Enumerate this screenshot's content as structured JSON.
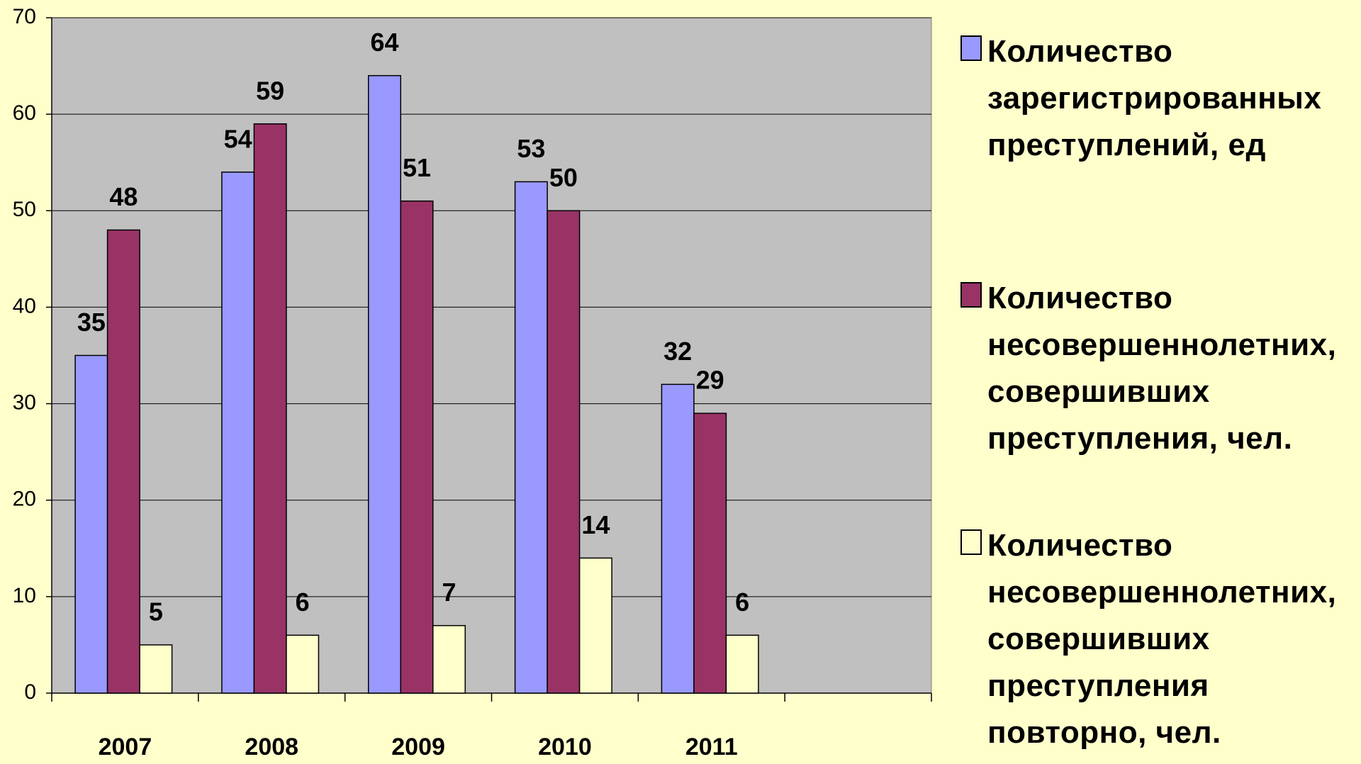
{
  "chart_data": {
    "type": "bar",
    "categories": [
      "2007",
      "2008",
      "2009",
      "2010",
      "2011",
      null
    ],
    "series": [
      {
        "name": "Количество зарегистрированных преступлений, ед",
        "color": "#9999ff",
        "values": [
          35,
          54,
          64,
          53,
          32,
          null
        ]
      },
      {
        "name": "Количество несовершеннолетних, совершивших преступления, чел.",
        "color": "#993366",
        "values": [
          48,
          59,
          51,
          50,
          29,
          null
        ]
      },
      {
        "name": "Количество несовершеннолетних, совершивших преступления повторно, чел.",
        "color": "#ffffcc",
        "values": [
          5,
          6,
          7,
          14,
          6,
          null
        ]
      }
    ],
    "ylim": [
      0,
      70
    ],
    "yticks": [
      0,
      10,
      20,
      30,
      40,
      50,
      60,
      70
    ],
    "grid": true,
    "legend": "right",
    "plot_color": "#c0c0c0"
  }
}
